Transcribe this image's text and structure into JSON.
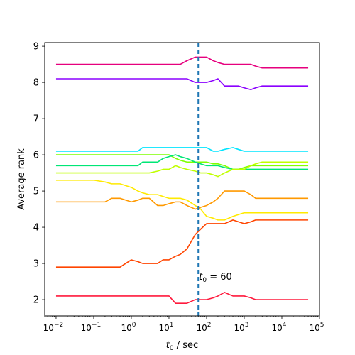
{
  "chart_data": {
    "type": "line",
    "title": "",
    "xlabel_base": "t",
    "xlabel_sub": "0",
    "xlabel_rest": " / sec",
    "ylabel": "Average rank",
    "x_scale": "log",
    "xlim": [
      0.005,
      100000
    ],
    "ylim": [
      1.55,
      9.1
    ],
    "x_ticks": [
      {
        "value": 0.01,
        "base": "10",
        "exp": "−2"
      },
      {
        "value": 0.1,
        "base": "10",
        "exp": "−1"
      },
      {
        "value": 1,
        "base": "10",
        "exp": "0"
      },
      {
        "value": 10,
        "base": "10",
        "exp": "1"
      },
      {
        "value": 100,
        "base": "10",
        "exp": "2"
      },
      {
        "value": 1000,
        "base": "10",
        "exp": "3"
      },
      {
        "value": 10000,
        "base": "10",
        "exp": "4"
      },
      {
        "value": 100000,
        "base": "10",
        "exp": "5"
      }
    ],
    "y_ticks": [
      2,
      3,
      4,
      5,
      6,
      7,
      8,
      9
    ],
    "grid": false,
    "legend": "none",
    "vline": {
      "x": 60,
      "color": "#1f77b4",
      "style": "dashed"
    },
    "annotation": {
      "prefix": "t",
      "sub": "0",
      "text": " = 60",
      "x": 60,
      "y": 2.55
    },
    "x": [
      0.01,
      0.02,
      0.05,
      0.1,
      0.2,
      0.3,
      0.5,
      1,
      1.5,
      2,
      3,
      5,
      7,
      10,
      15,
      20,
      30,
      50,
      70,
      100,
      150,
      200,
      300,
      500,
      700,
      1000,
      1500,
      2000,
      3000,
      5000,
      10000,
      20000,
      50000
    ],
    "series": [
      {
        "color": "#e6007e",
        "values": [
          8.5,
          8.5,
          8.5,
          8.5,
          8.5,
          8.5,
          8.5,
          8.5,
          8.5,
          8.5,
          8.5,
          8.5,
          8.5,
          8.5,
          8.5,
          8.5,
          8.6,
          8.7,
          8.7,
          8.7,
          8.6,
          8.55,
          8.5,
          8.5,
          8.5,
          8.5,
          8.5,
          8.45,
          8.4,
          8.4,
          8.4,
          8.4,
          8.4
        ]
      },
      {
        "color": "#8b00ff",
        "values": [
          8.1,
          8.1,
          8.1,
          8.1,
          8.1,
          8.1,
          8.1,
          8.1,
          8.1,
          8.1,
          8.1,
          8.1,
          8.1,
          8.1,
          8.1,
          8.1,
          8.1,
          8.0,
          8.0,
          8.0,
          8.05,
          8.1,
          7.9,
          7.9,
          7.9,
          7.85,
          7.8,
          7.85,
          7.9,
          7.9,
          7.9,
          7.9,
          7.9
        ]
      },
      {
        "color": "#00e5ff",
        "values": [
          6.1,
          6.1,
          6.1,
          6.1,
          6.1,
          6.1,
          6.1,
          6.1,
          6.1,
          6.2,
          6.2,
          6.2,
          6.2,
          6.2,
          6.2,
          6.2,
          6.2,
          6.2,
          6.2,
          6.2,
          6.1,
          6.1,
          6.15,
          6.2,
          6.15,
          6.1,
          6.1,
          6.1,
          6.1,
          6.1,
          6.1,
          6.1,
          6.1
        ]
      },
      {
        "color": "#7fff00",
        "values": [
          6.0,
          6.0,
          6.0,
          6.0,
          6.0,
          6.0,
          6.0,
          6.0,
          6.0,
          6.0,
          6.0,
          6.0,
          6.0,
          6.0,
          5.9,
          5.85,
          5.8,
          5.8,
          5.8,
          5.8,
          5.75,
          5.75,
          5.7,
          5.6,
          5.6,
          5.65,
          5.7,
          5.7,
          5.7,
          5.7,
          5.7,
          5.7,
          5.7
        ]
      },
      {
        "color": "#00e676",
        "values": [
          5.7,
          5.7,
          5.7,
          5.7,
          5.7,
          5.7,
          5.7,
          5.7,
          5.7,
          5.8,
          5.8,
          5.8,
          5.9,
          5.95,
          6.0,
          5.95,
          5.9,
          5.8,
          5.75,
          5.7,
          5.7,
          5.7,
          5.65,
          5.6,
          5.6,
          5.6,
          5.6,
          5.6,
          5.6,
          5.6,
          5.6,
          5.6,
          5.6
        ]
      },
      {
        "color": "#c0ff00",
        "values": [
          5.5,
          5.5,
          5.5,
          5.5,
          5.5,
          5.5,
          5.5,
          5.5,
          5.5,
          5.5,
          5.5,
          5.55,
          5.6,
          5.6,
          5.7,
          5.65,
          5.6,
          5.55,
          5.5,
          5.5,
          5.45,
          5.4,
          5.5,
          5.6,
          5.6,
          5.6,
          5.7,
          5.75,
          5.8,
          5.8,
          5.8,
          5.8,
          5.8
        ]
      },
      {
        "color": "#ffea00",
        "values": [
          5.3,
          5.3,
          5.3,
          5.3,
          5.25,
          5.2,
          5.2,
          5.1,
          5.0,
          4.95,
          4.9,
          4.9,
          4.85,
          4.8,
          4.8,
          4.8,
          4.75,
          4.6,
          4.5,
          4.3,
          4.25,
          4.2,
          4.2,
          4.3,
          4.35,
          4.4,
          4.4,
          4.4,
          4.4,
          4.4,
          4.4,
          4.4,
          4.4
        ]
      },
      {
        "color": "#ff9900",
        "values": [
          4.7,
          4.7,
          4.7,
          4.7,
          4.7,
          4.8,
          4.8,
          4.7,
          4.75,
          4.8,
          4.8,
          4.6,
          4.6,
          4.65,
          4.7,
          4.7,
          4.6,
          4.5,
          4.55,
          4.6,
          4.7,
          4.8,
          5.0,
          5.0,
          5.0,
          5.0,
          4.9,
          4.8,
          4.8,
          4.8,
          4.8,
          4.8,
          4.8
        ]
      },
      {
        "color": "#ff4500",
        "values": [
          2.9,
          2.9,
          2.9,
          2.9,
          2.9,
          2.9,
          2.9,
          3.1,
          3.05,
          3.0,
          3.0,
          3.0,
          3.1,
          3.1,
          3.2,
          3.25,
          3.4,
          3.8,
          3.95,
          4.1,
          4.1,
          4.1,
          4.1,
          4.2,
          4.15,
          4.1,
          4.15,
          4.2,
          4.2,
          4.2,
          4.2,
          4.2,
          4.2
        ]
      },
      {
        "color": "#ff1a3d",
        "values": [
          2.1,
          2.1,
          2.1,
          2.1,
          2.1,
          2.1,
          2.1,
          2.1,
          2.1,
          2.1,
          2.1,
          2.1,
          2.1,
          2.1,
          1.9,
          1.9,
          1.9,
          2.0,
          2.0,
          2.0,
          2.05,
          2.1,
          2.2,
          2.1,
          2.1,
          2.1,
          2.05,
          2.0,
          2.0,
          2.0,
          2.0,
          2.0,
          2.0
        ]
      }
    ]
  }
}
